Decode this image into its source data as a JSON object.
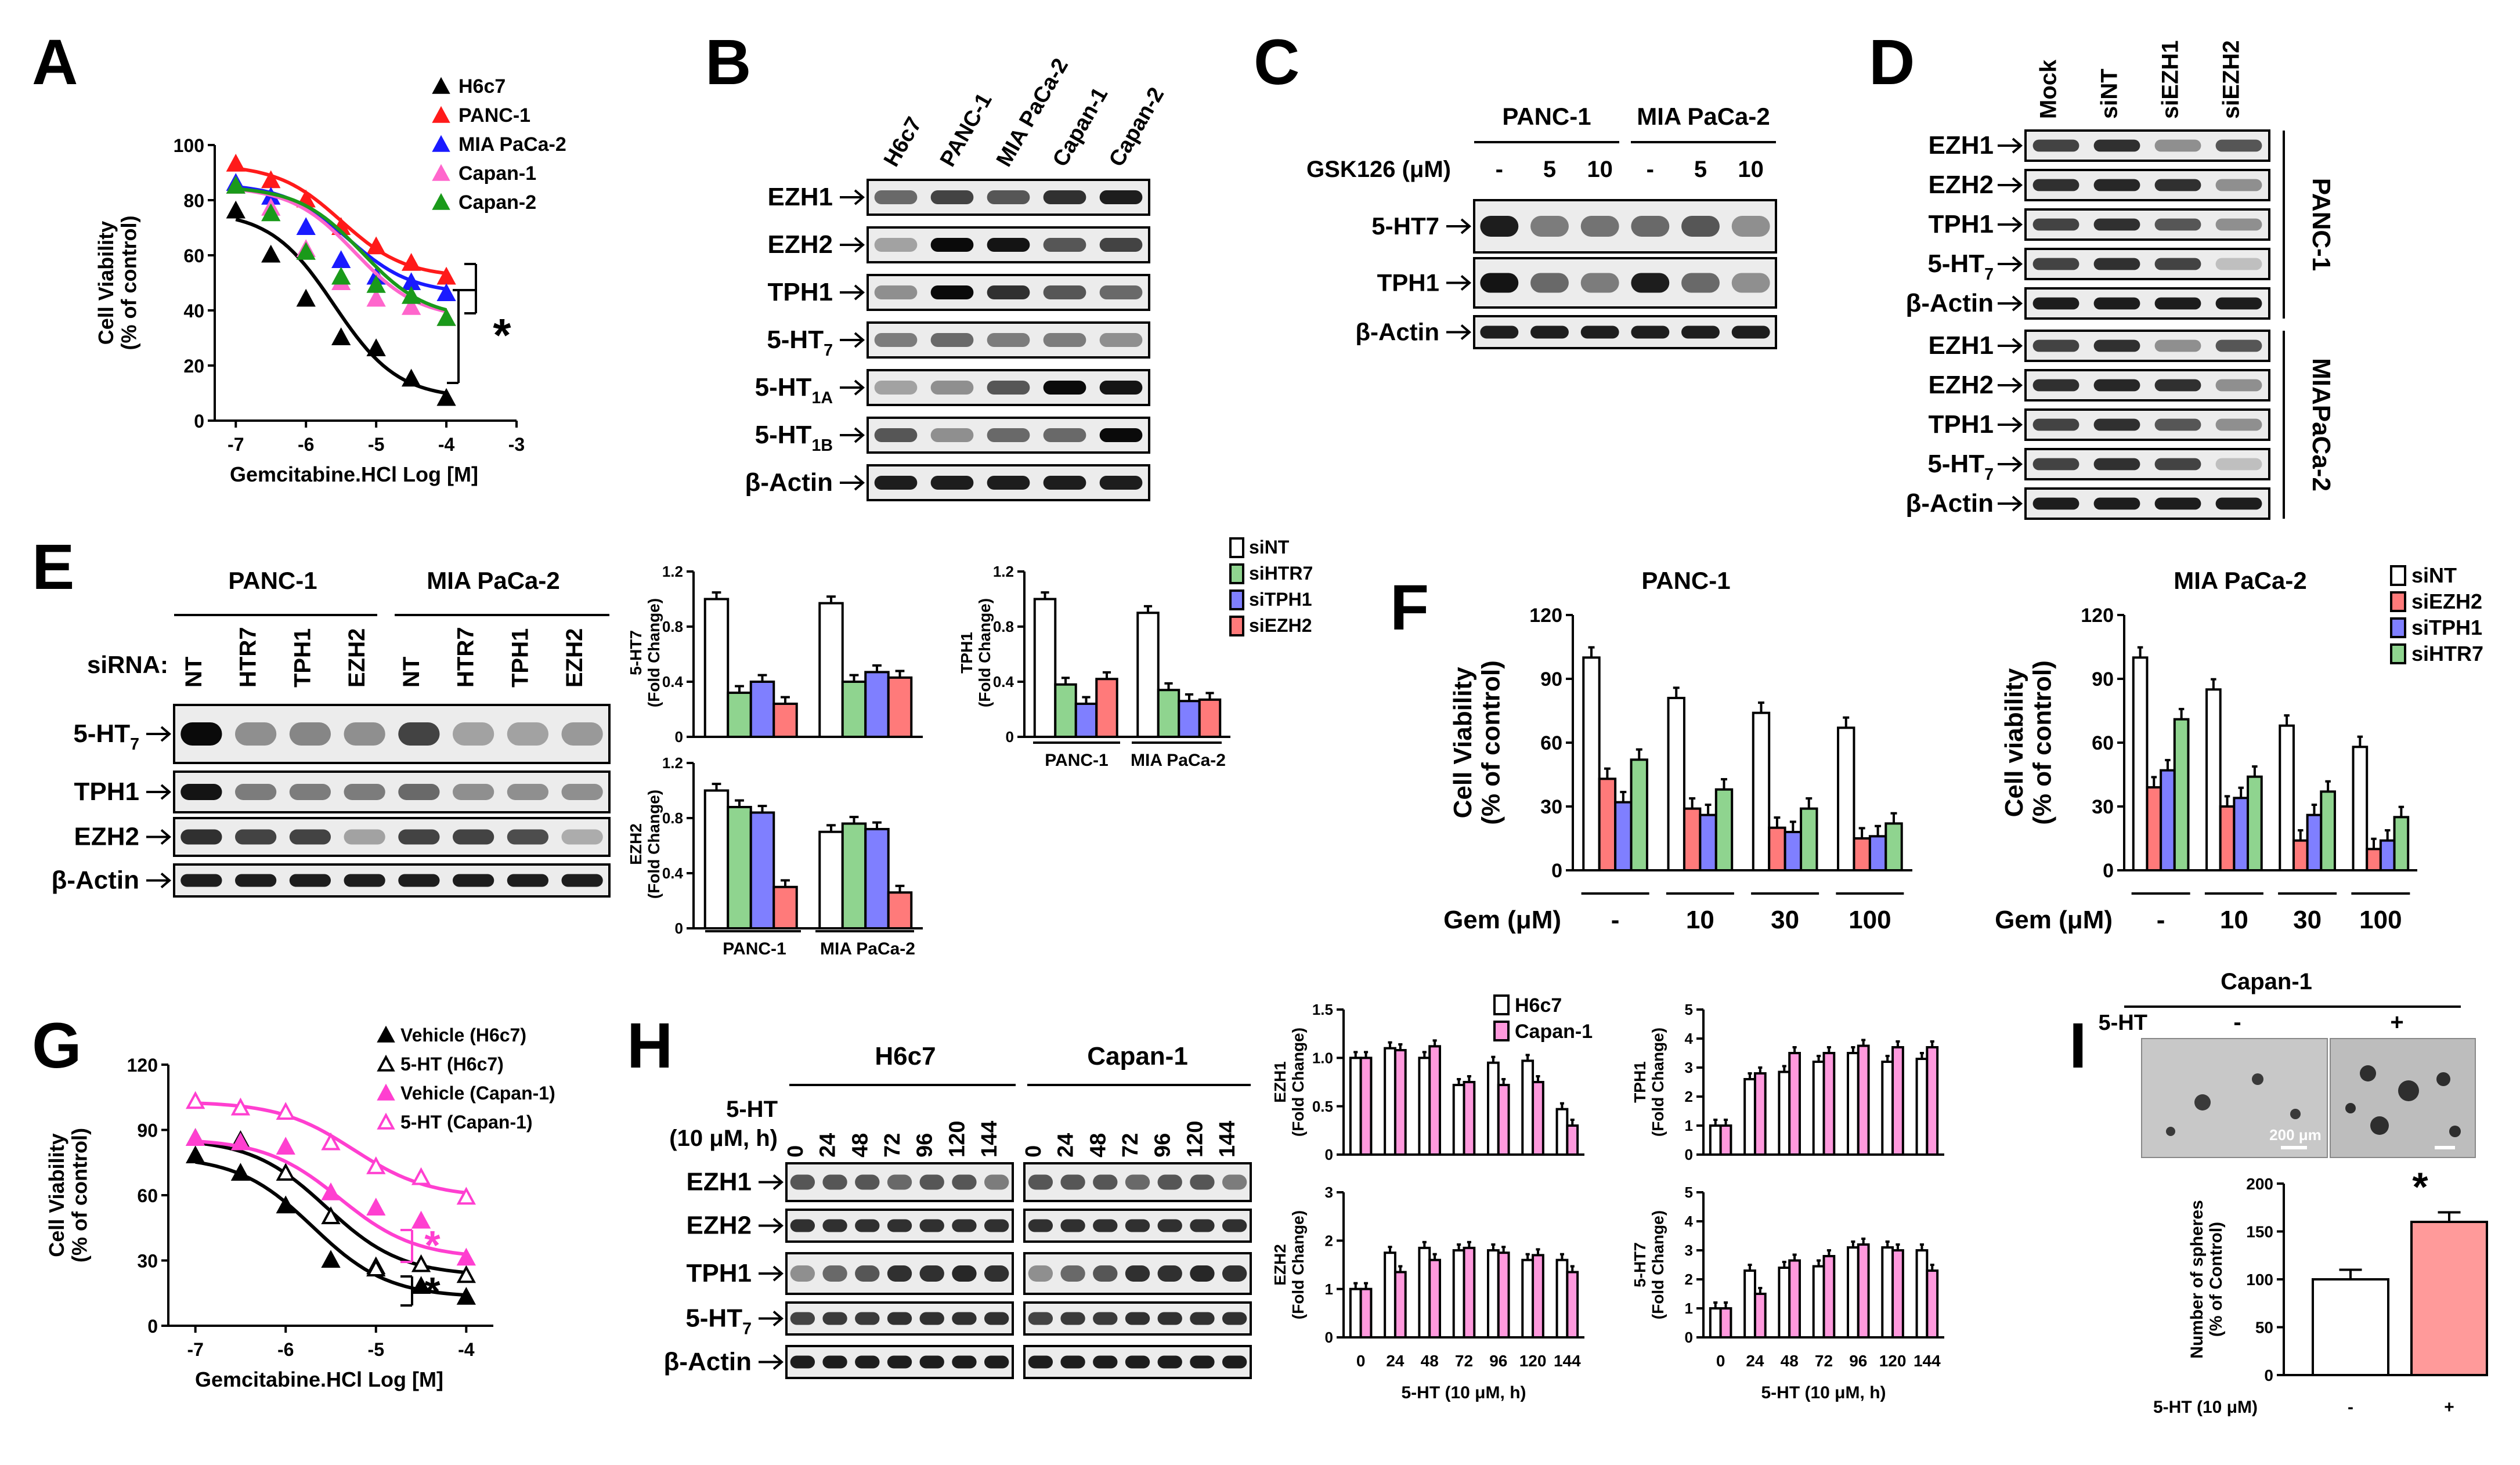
{
  "panels": {
    "A": {
      "letter": "A",
      "ylabel_line1": "Cell Viability",
      "ylabel_line2": "(% of control)",
      "xlabel": "Gemcitabine.HCl Log [M]",
      "y_ticks": [
        "0",
        "20",
        "40",
        "60",
        "80",
        "100"
      ],
      "x_ticks": [
        "-7",
        "-6",
        "-5",
        "-4",
        "-3"
      ],
      "legend": [
        "H6c7",
        "PANC-1",
        "MIA PaCa-2",
        "Capan-1",
        "Capan-2"
      ],
      "sig": "*"
    },
    "B": {
      "letter": "B",
      "lanes": [
        "H6c7",
        "PANC-1",
        "MIA PaCa-2",
        "Capan-1",
        "Capan-2"
      ],
      "rows": [
        {
          "label": "EZH1",
          "sub": ""
        },
        {
          "label": "EZH2",
          "sub": ""
        },
        {
          "label": "TPH1",
          "sub": ""
        },
        {
          "label": "5-HT",
          "sub": "7"
        },
        {
          "label": "5-HT",
          "sub": "1A"
        },
        {
          "label": "5-HT",
          "sub": "1B"
        },
        {
          "label": "β-Actin",
          "sub": ""
        }
      ]
    },
    "C": {
      "letter": "C",
      "groups": [
        "PANC-1",
        "MIA PaCa-2"
      ],
      "treatment_label": "GSK126 (μM)",
      "doses": [
        "-",
        "5",
        "10",
        "-",
        "5",
        "10"
      ],
      "rows": [
        "5-HT7",
        "TPH1",
        "β-Actin"
      ]
    },
    "D": {
      "letter": "D",
      "lanes": [
        "Mock",
        "siNT",
        "siEZH1",
        "siEZH2"
      ],
      "groups": [
        "PANC-1",
        "MIAPaCa-2"
      ],
      "rows": [
        {
          "label": "EZH1",
          "sub": ""
        },
        {
          "label": "EZH2",
          "sub": ""
        },
        {
          "label": "TPH1",
          "sub": ""
        },
        {
          "label": "5-HT",
          "sub": "7"
        },
        {
          "label": "β-Actin",
          "sub": ""
        }
      ]
    },
    "E": {
      "letter": "E",
      "groups": [
        "PANC-1",
        "MIA PaCa-2"
      ],
      "sirna_label": "siRNA:",
      "lanes": [
        "NT",
        "HTR7",
        "TPH1",
        "EZH2",
        "NT",
        "HTR7",
        "TPH1",
        "EZH2"
      ],
      "rows": [
        {
          "label": "5-HT",
          "sub": "7"
        },
        {
          "label": "TPH1",
          "sub": ""
        },
        {
          "label": "EZH2",
          "sub": ""
        },
        {
          "label": "β-Actin",
          "sub": ""
        }
      ],
      "legend": [
        "siNT",
        "siHTR7",
        "siTPH1",
        "siEZH2"
      ],
      "fold_change": "(Fold Change)",
      "charts": {
        "ht7": {
          "ylabel": "5-HT7",
          "y_ticks": [
            "0",
            "0.4",
            "0.8",
            "1.2"
          ]
        },
        "ezh2": {
          "ylabel": "EZH2",
          "y_ticks": [
            "0",
            "0.4",
            "0.8",
            "1.2"
          ]
        },
        "tph1": {
          "ylabel": "TPH1",
          "y_ticks": [
            "0",
            "0.4",
            "0.8",
            "1.2"
          ]
        }
      }
    },
    "F": {
      "letter": "F",
      "titles": [
        "PANC-1",
        "MIA PaCa-2"
      ],
      "ylabels": [
        [
          "Cell Viability",
          "(% of control)"
        ],
        [
          "Cell viability",
          "(% of control)"
        ]
      ],
      "y_ticks": [
        "0",
        "30",
        "60",
        "90",
        "120"
      ],
      "gem_label": "Gem (μM)",
      "doses": [
        "-",
        "10",
        "30",
        "100"
      ],
      "legend": [
        "siNT",
        "siEZH2",
        "siTPH1",
        "siHTR7"
      ]
    },
    "G": {
      "letter": "G",
      "ylabel_line1": "Cell Viability",
      "ylabel_line2": "(% of control)",
      "xlabel": "Gemcitabine.HCl Log [M]",
      "y_ticks": [
        "0",
        "30",
        "60",
        "90",
        "120"
      ],
      "x_ticks": [
        "-7",
        "-6",
        "-5",
        "-4"
      ],
      "legend": [
        "Vehicle (H6c7)",
        "5-HT (H6c7)",
        "Vehicle (Capan-1)",
        "5-HT (Capan-1)"
      ],
      "sig": "*"
    },
    "H": {
      "letter": "H",
      "groups": [
        "H6c7",
        "Capan-1"
      ],
      "treatment_line1": "5-HT",
      "treatment_line2": "(10 μM, h)",
      "times": [
        "0",
        "24",
        "48",
        "72",
        "96",
        "120",
        "144"
      ],
      "rows": [
        {
          "label": "EZH1",
          "sub": ""
        },
        {
          "label": "EZH2",
          "sub": ""
        },
        {
          "label": "TPH1",
          "sub": ""
        },
        {
          "label": "5-HT",
          "sub": "7"
        },
        {
          "label": "β-Actin",
          "sub": ""
        }
      ],
      "legend": [
        "H6c7",
        "Capan-1"
      ],
      "fold_change": "(Fold Change)",
      "xlabel": "5-HT (10 μM, h)",
      "charts": {
        "ezh1": {
          "ylabel": "EZH1",
          "y_ticks": [
            "0",
            "0.5",
            "1.0",
            "1.5"
          ]
        },
        "ezh2": {
          "ylabel": "EZH2",
          "y_ticks": [
            "0",
            "1",
            "2",
            "3"
          ]
        },
        "tph1": {
          "ylabel": "TPH1",
          "y_ticks": [
            "0",
            "1",
            "2",
            "3",
            "4",
            "5"
          ]
        },
        "ht7": {
          "ylabel": "5-HT7",
          "y_ticks": [
            "0",
            "1",
            "2",
            "3",
            "4",
            "5"
          ]
        }
      }
    },
    "I": {
      "letter": "I",
      "title": "Capan-1",
      "treatment": "5-HT",
      "conditions": [
        "-",
        "+"
      ],
      "scale_label": "200 μm",
      "ylabel_line1": "Number of spheres",
      "ylabel_line2": "(% of Control)",
      "y_ticks": [
        "0",
        "50",
        "100",
        "150",
        "200"
      ],
      "xlabel": "5-HT (10 μM)",
      "sig": "*"
    }
  },
  "chart_data": [
    {
      "id": "A",
      "type": "scatter",
      "title": "",
      "xlabel": "Gemcitabine.HCl Log [M]",
      "ylabel": "Cell Viability (% of control)",
      "xlim": [
        -7.3,
        -3
      ],
      "ylim": [
        0,
        100
      ],
      "x": [
        -7,
        -6.5,
        -6,
        -5.5,
        -5,
        -4.5,
        -4
      ],
      "series": [
        {
          "name": "H6c7",
          "color": "#000000",
          "marker": "triangle",
          "values": [
            76,
            60,
            44,
            30,
            26,
            15,
            8
          ]
        },
        {
          "name": "PANC-1",
          "color": "#ff1a1a",
          "marker": "triangle",
          "values": [
            93,
            87,
            80,
            70,
            63,
            57,
            52
          ]
        },
        {
          "name": "MIA PaCa-2",
          "color": "#1a1aff",
          "marker": "triangle",
          "values": [
            86,
            81,
            70,
            58,
            52,
            50,
            46
          ]
        },
        {
          "name": "Capan-1",
          "color": "#ff66cc",
          "marker": "triangle",
          "values": [
            85,
            77,
            62,
            50,
            44,
            41,
            37
          ]
        },
        {
          "name": "Capan-2",
          "color": "#1a9a1a",
          "marker": "triangle",
          "values": [
            85,
            75,
            61,
            52,
            49,
            45,
            37
          ]
        }
      ]
    },
    {
      "id": "E-5HT7",
      "type": "bar",
      "ylabel": "5-HT7 (Fold Change)",
      "ylim": [
        0,
        1.2
      ],
      "categories": [
        "PANC-1",
        "MIA PaCa-2"
      ],
      "series": [
        {
          "name": "siNT",
          "color": "#ffffff",
          "values": [
            1.0,
            0.97
          ]
        },
        {
          "name": "siHTR7",
          "color": "#8fd48f",
          "values": [
            0.32,
            0.4
          ]
        },
        {
          "name": "siTPH1",
          "color": "#7f7fff",
          "values": [
            0.4,
            0.47
          ]
        },
        {
          "name": "siEZH2",
          "color": "#ff7a7a",
          "values": [
            0.24,
            0.43
          ]
        }
      ]
    },
    {
      "id": "E-EZH2",
      "type": "bar",
      "ylabel": "EZH2 (Fold Change)",
      "ylim": [
        0,
        1.2
      ],
      "categories": [
        "PANC-1",
        "MIA PaCa-2"
      ],
      "series": [
        {
          "name": "siNT",
          "color": "#ffffff",
          "values": [
            1.0,
            0.7
          ]
        },
        {
          "name": "siHTR7",
          "color": "#8fd48f",
          "values": [
            0.88,
            0.76
          ]
        },
        {
          "name": "siTPH1",
          "color": "#7f7fff",
          "values": [
            0.84,
            0.72
          ]
        },
        {
          "name": "siEZH2",
          "color": "#ff7a7a",
          "values": [
            0.3,
            0.26
          ]
        }
      ]
    },
    {
      "id": "E-TPH1",
      "type": "bar",
      "ylabel": "TPH1 (Fold Change)",
      "ylim": [
        0,
        1.2
      ],
      "categories": [
        "PANC-1",
        "MIA PaCa-2"
      ],
      "series": [
        {
          "name": "siNT",
          "color": "#ffffff",
          "values": [
            1.0,
            0.9
          ]
        },
        {
          "name": "siHTR7",
          "color": "#8fd48f",
          "values": [
            0.38,
            0.34
          ]
        },
        {
          "name": "siTPH1",
          "color": "#7f7fff",
          "values": [
            0.24,
            0.26
          ]
        },
        {
          "name": "siEZH2",
          "color": "#ff7a7a",
          "values": [
            0.42,
            0.27
          ]
        }
      ]
    },
    {
      "id": "F-PANC-1",
      "type": "bar",
      "title": "PANC-1",
      "ylabel": "Cell Viability (% of control)",
      "ylim": [
        0,
        120
      ],
      "categories": [
        "-",
        "10",
        "30",
        "100"
      ],
      "series": [
        {
          "name": "siNT",
          "color": "#ffffff",
          "values": [
            100,
            81,
            74,
            67
          ]
        },
        {
          "name": "siEZH2",
          "color": "#ff7a7a",
          "values": [
            43,
            29,
            20,
            15
          ]
        },
        {
          "name": "siTPH1",
          "color": "#7f7fff",
          "values": [
            32,
            26,
            18,
            16
          ]
        },
        {
          "name": "siHTR7",
          "color": "#8fd48f",
          "values": [
            52,
            38,
            29,
            22
          ]
        }
      ]
    },
    {
      "id": "F-MIA-PaCa-2",
      "type": "bar",
      "title": "MIA PaCa-2",
      "ylabel": "Cell viability (% of control)",
      "ylim": [
        0,
        120
      ],
      "categories": [
        "-",
        "10",
        "30",
        "100"
      ],
      "series": [
        {
          "name": "siNT",
          "color": "#ffffff",
          "values": [
            100,
            85,
            68,
            58
          ]
        },
        {
          "name": "siEZH2",
          "color": "#ff7a7a",
          "values": [
            39,
            30,
            14,
            10
          ]
        },
        {
          "name": "siTPH1",
          "color": "#7f7fff",
          "values": [
            47,
            34,
            26,
            14
          ]
        },
        {
          "name": "siHTR7",
          "color": "#8fd48f",
          "values": [
            71,
            44,
            37,
            25
          ]
        }
      ]
    },
    {
      "id": "G",
      "type": "scatter",
      "xlabel": "Gemcitabine.HCl Log [M]",
      "ylabel": "Cell Viability (% of control)",
      "xlim": [
        -7.3,
        -3.7
      ],
      "ylim": [
        0,
        120
      ],
      "x": [
        -7,
        -6.5,
        -6,
        -5.5,
        -5,
        -4.5,
        -4
      ],
      "series": [
        {
          "name": "Vehicle (H6c7)",
          "color": "#000000",
          "marker": "triangle",
          "values": [
            78,
            70,
            55,
            30,
            27,
            18,
            13
          ]
        },
        {
          "name": "5-HT (H6c7)",
          "color": "#000000",
          "marker": "triangle-open",
          "values": [
            86,
            85,
            70,
            50,
            26,
            28,
            23
          ]
        },
        {
          "name": "Vehicle (Capan-1)",
          "color": "#ff3fd0",
          "marker": "triangle",
          "values": [
            86,
            84,
            82,
            61,
            54,
            48,
            31
          ]
        },
        {
          "name": "5-HT (Capan-1)",
          "color": "#ff3fd0",
          "marker": "triangle-open",
          "values": [
            103,
            100,
            98,
            84,
            73,
            68,
            59
          ]
        }
      ]
    },
    {
      "id": "H-EZH1",
      "type": "bar",
      "ylabel": "EZH1 (Fold Change)",
      "ylim": [
        0,
        1.5
      ],
      "categories": [
        "0",
        "24",
        "48",
        "72",
        "96",
        "120",
        "144"
      ],
      "series": [
        {
          "name": "H6c7",
          "color": "#ffffff",
          "values": [
            1.0,
            1.1,
            1.0,
            0.72,
            0.95,
            0.97,
            0.47
          ]
        },
        {
          "name": "Capan-1",
          "color": "#ff99dd",
          "values": [
            1.0,
            1.08,
            1.12,
            0.75,
            0.72,
            0.75,
            0.3
          ]
        }
      ]
    },
    {
      "id": "H-EZH2",
      "type": "bar",
      "ylabel": "EZH2 (Fold Change)",
      "ylim": [
        0,
        3
      ],
      "categories": [
        "0",
        "24",
        "48",
        "72",
        "96",
        "120",
        "144"
      ],
      "series": [
        {
          "name": "H6c7",
          "color": "#ffffff",
          "values": [
            1.0,
            1.75,
            1.85,
            1.8,
            1.8,
            1.6,
            1.6
          ]
        },
        {
          "name": "Capan-1",
          "color": "#ff99dd",
          "values": [
            1.0,
            1.35,
            1.6,
            1.85,
            1.75,
            1.7,
            1.35
          ]
        }
      ]
    },
    {
      "id": "H-TPH1",
      "type": "bar",
      "ylabel": "TPH1 (Fold Change)",
      "ylim": [
        0,
        5
      ],
      "categories": [
        "0",
        "24",
        "48",
        "72",
        "96",
        "120",
        "144"
      ],
      "series": [
        {
          "name": "H6c7",
          "color": "#ffffff",
          "values": [
            1.0,
            2.6,
            2.85,
            3.2,
            3.5,
            3.2,
            3.3
          ]
        },
        {
          "name": "Capan-1",
          "color": "#ff99dd",
          "values": [
            1.0,
            2.8,
            3.5,
            3.5,
            3.75,
            3.7,
            3.7
          ]
        }
      ]
    },
    {
      "id": "H-5HT7",
      "type": "bar",
      "ylabel": "5-HT7 (Fold Change)",
      "ylim": [
        0,
        5
      ],
      "categories": [
        "0",
        "24",
        "48",
        "72",
        "96",
        "120",
        "144"
      ],
      "series": [
        {
          "name": "H6c7",
          "color": "#ffffff",
          "values": [
            1.0,
            2.3,
            2.4,
            2.45,
            3.1,
            3.1,
            3.0
          ]
        },
        {
          "name": "Capan-1",
          "color": "#ff99dd",
          "values": [
            1.0,
            1.5,
            2.65,
            2.8,
            3.2,
            3.0,
            2.3
          ]
        }
      ]
    },
    {
      "id": "I",
      "type": "bar",
      "ylabel": "Number of spheres (% of Control)",
      "xlabel": "5-HT (10 μM)",
      "ylim": [
        0,
        200
      ],
      "categories": [
        "-",
        "+"
      ],
      "values": [
        100,
        160
      ],
      "colors": [
        "#ffffff",
        "#ff9a9a"
      ]
    }
  ]
}
